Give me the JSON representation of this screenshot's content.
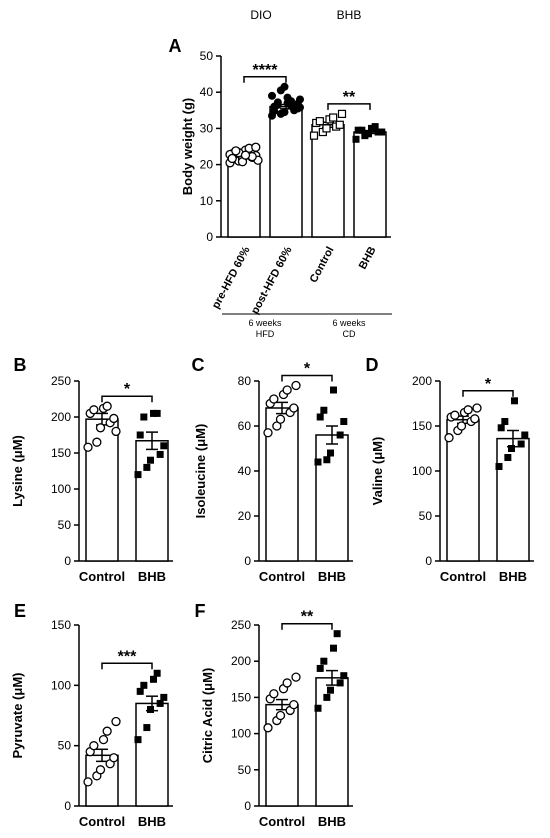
{
  "header": {
    "dio_label": "DIO",
    "bhb_label": "BHB"
  },
  "chart_data": [
    {
      "panel": "A",
      "type": "bar",
      "ylabel": "Body weight (g)",
      "ylim": [
        0,
        50
      ],
      "yticks": [
        0,
        10,
        20,
        30,
        40,
        50
      ],
      "categories": [
        "pre-HFD 60%",
        "post-HFD 60%",
        "Control",
        "BHB"
      ],
      "values": [
        22,
        36,
        31,
        29
      ],
      "errors": [
        0.4,
        0.6,
        0.7,
        0.4
      ],
      "markers": [
        "open-circle",
        "filled-circle",
        "open-square",
        "filled-square"
      ],
      "points": [
        [
          20.5,
          21,
          21.5,
          22,
          22.5,
          23,
          23.5,
          24,
          24.5,
          21.2,
          22.8,
          23.3,
          20.8,
          22.2,
          24.8,
          21.7,
          23.8,
          22.6
        ],
        [
          33.5,
          34,
          34.5,
          35,
          35.5,
          36,
          36.5,
          37,
          37.5,
          38,
          39,
          40.5,
          41.5,
          35.2,
          36.8,
          34.8,
          37.2,
          38.5,
          36.2,
          35.8
        ],
        [
          28,
          29,
          30,
          30.5,
          31,
          31.5,
          32,
          32.5,
          33,
          34
        ],
        [
          27,
          28,
          28.5,
          29,
          29,
          29.5,
          29.5,
          30,
          30.5
        ]
      ],
      "sig_brackets": [
        {
          "from": 0,
          "to": 1,
          "label": "****"
        },
        {
          "from": 2,
          "to": 3,
          "label": "**"
        }
      ],
      "groups": [
        {
          "from": 0,
          "to": 1,
          "label_line1": "6 weeks",
          "label_line2": "HFD"
        },
        {
          "from": 2,
          "to": 3,
          "label_line1": "6 weeks",
          "label_line2": "CD"
        }
      ]
    },
    {
      "panel": "B",
      "type": "bar",
      "ylabel": "Lysine (μM)",
      "ylim": [
        0,
        250
      ],
      "yticks": [
        0,
        50,
        100,
        150,
        200,
        250
      ],
      "categories": [
        "Control",
        "BHB"
      ],
      "values": [
        197,
        167
      ],
      "errors": [
        8,
        12
      ],
      "markers": [
        "open-circle",
        "filled-square"
      ],
      "points": [
        [
          158,
          165,
          185,
          192,
          198,
          205,
          210,
          212,
          215,
          180
        ],
        [
          120,
          130,
          140,
          148,
          160,
          175,
          200,
          205,
          205
        ]
      ],
      "sig_brackets": [
        {
          "from": 0,
          "to": 1,
          "label": "*"
        }
      ]
    },
    {
      "panel": "C",
      "type": "bar",
      "ylabel": "Isoleucine (μM)",
      "ylim": [
        0,
        80
      ],
      "yticks": [
        0,
        20,
        40,
        60,
        80
      ],
      "categories": [
        "Control",
        "BHB"
      ],
      "values": [
        68,
        56
      ],
      "errors": [
        2.5,
        4
      ],
      "markers": [
        "open-circle",
        "filled-square"
      ],
      "points": [
        [
          57,
          60,
          63,
          66,
          68,
          70,
          72,
          74,
          76,
          78
        ],
        [
          44,
          45,
          48,
          56,
          62,
          64,
          67,
          76
        ]
      ],
      "sig_brackets": [
        {
          "from": 0,
          "to": 1,
          "label": "*"
        }
      ]
    },
    {
      "panel": "D",
      "type": "bar",
      "ylabel": "Valine (μM)",
      "ylim": [
        0,
        200
      ],
      "yticks": [
        0,
        50,
        100,
        150,
        200
      ],
      "categories": [
        "Control",
        "BHB"
      ],
      "values": [
        157,
        136
      ],
      "errors": [
        4,
        9
      ],
      "markers": [
        "open-circle",
        "filled-square"
      ],
      "points": [
        [
          137,
          145,
          150,
          155,
          158,
          160,
          162,
          165,
          168,
          170
        ],
        [
          105,
          115,
          125,
          130,
          140,
          148,
          155,
          178
        ]
      ],
      "sig_brackets": [
        {
          "from": 0,
          "to": 1,
          "label": "*"
        }
      ]
    },
    {
      "panel": "E",
      "type": "bar",
      "ylabel": "Pyruvate (μM)",
      "ylim": [
        0,
        150
      ],
      "yticks": [
        0,
        50,
        100,
        150
      ],
      "categories": [
        "Control",
        "BHB"
      ],
      "values": [
        42,
        85
      ],
      "errors": [
        5,
        6
      ],
      "markers": [
        "open-circle",
        "filled-square"
      ],
      "points": [
        [
          20,
          25,
          30,
          35,
          40,
          45,
          50,
          55,
          62,
          70
        ],
        [
          55,
          65,
          80,
          85,
          90,
          95,
          100,
          105,
          110
        ]
      ],
      "sig_brackets": [
        {
          "from": 0,
          "to": 1,
          "label": "***"
        }
      ]
    },
    {
      "panel": "F",
      "type": "bar",
      "ylabel": "Citric Acid (μM)",
      "ylim": [
        0,
        250
      ],
      "yticks": [
        0,
        50,
        100,
        150,
        200,
        250
      ],
      "categories": [
        "Control",
        "BHB"
      ],
      "values": [
        140,
        177
      ],
      "errors": [
        7,
        10
      ],
      "markers": [
        "open-circle",
        "filled-square"
      ],
      "points": [
        [
          108,
          118,
          125,
          132,
          140,
          148,
          155,
          162,
          170,
          178
        ],
        [
          135,
          150,
          160,
          170,
          180,
          190,
          200,
          218,
          238
        ]
      ],
      "sig_brackets": [
        {
          "from": 0,
          "to": 1,
          "label": "**"
        }
      ]
    }
  ]
}
